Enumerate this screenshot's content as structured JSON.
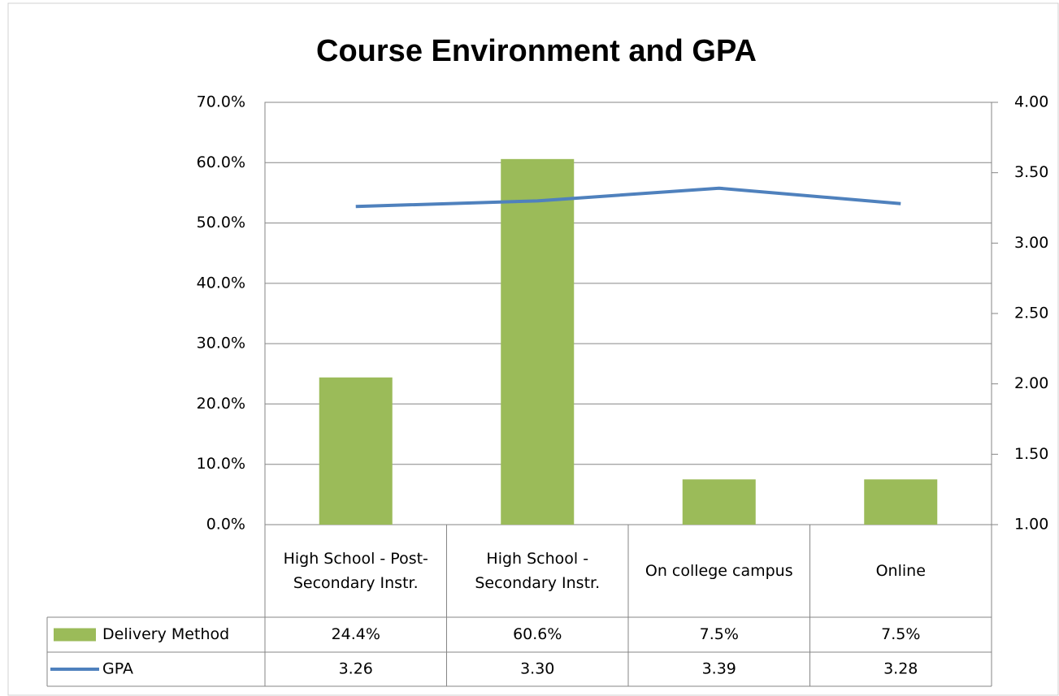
{
  "chart_data": {
    "type": "bar",
    "title": "Course Environment and GPA",
    "categories": [
      "High School - Post-Secondary Instr.",
      "High School - Secondary Instr.",
      "On college campus",
      "Online"
    ],
    "series": [
      {
        "name": "Delivery Method",
        "type": "bar",
        "color": "#9bbb59",
        "values": [
          24.4,
          60.6,
          7.5,
          7.5
        ],
        "value_labels": [
          "24.4%",
          "60.6%",
          "7.5%",
          "7.5%"
        ]
      },
      {
        "name": "GPA",
        "type": "line",
        "axis": "y2",
        "color": "#4f81bd",
        "values": [
          3.26,
          3.3,
          3.39,
          3.28
        ],
        "value_labels": [
          "3.26",
          "3.30",
          "3.39",
          "3.28"
        ]
      }
    ],
    "ylim": [
      0,
      70
    ],
    "yticks": [
      {
        "value": 0,
        "label": "0.0%"
      },
      {
        "value": 10,
        "label": "10.0%"
      },
      {
        "value": 20,
        "label": "20.0%"
      },
      {
        "value": 30,
        "label": "30.0%"
      },
      {
        "value": 40,
        "label": "40.0%"
      },
      {
        "value": 50,
        "label": "50.0%"
      },
      {
        "value": 60,
        "label": "60.0%"
      },
      {
        "value": 70,
        "label": "70.0%"
      }
    ],
    "y2lim": [
      1,
      4
    ],
    "y2ticks": [
      {
        "value": 1,
        "label": "1.00"
      },
      {
        "value": 1.5,
        "label": "1.50"
      },
      {
        "value": 2,
        "label": "2.00"
      },
      {
        "value": 2.5,
        "label": "2.50"
      },
      {
        "value": 3,
        "label": "3.00"
      },
      {
        "value": 3.5,
        "label": "3.50"
      },
      {
        "value": 4,
        "label": "4.00"
      }
    ],
    "grid": true,
    "data_table": true
  }
}
